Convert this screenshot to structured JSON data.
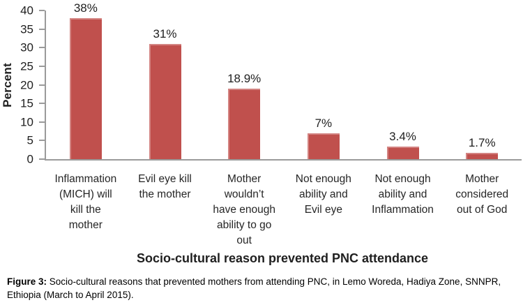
{
  "figure": {
    "caption_label": "Figure 3:",
    "caption_text": " Socio-cultural reasons that prevented mothers from attending PNC, in Lemo Woreda, Hadiya Zone, SNNPR, Ethiopia (March to April 2015)."
  },
  "chart_data": {
    "type": "bar",
    "title": "",
    "xlabel": "Socio-cultural reason prevented PNC attendance",
    "ylabel": "Percent",
    "ylim": [
      0,
      40
    ],
    "yticks": [
      0,
      5,
      10,
      15,
      20,
      25,
      30,
      35,
      40
    ],
    "grid": false,
    "legend": "none",
    "bar_color": "#C0504D",
    "axis_color": "#9A9A9A",
    "categories": [
      "Inflammation (MICH) will kill the mother",
      "Evil eye kill the mother",
      "Mother wouldn’t have enough ability to go out",
      "Not enough ability and Evil eye",
      "Not enough ability and Inflammation",
      "Mother considered out of God"
    ],
    "category_lines": [
      [
        "Inflammation",
        "(MICH) will",
        "kill the",
        "mother"
      ],
      [
        "Evil eye kill",
        "the mother"
      ],
      [
        "Mother",
        "wouldn’t",
        "have enough",
        "ability to go",
        "out"
      ],
      [
        "Not enough",
        "ability and",
        "Evil eye"
      ],
      [
        "Not enough",
        "ability and",
        "Inflammation"
      ],
      [
        "Mother",
        "considered",
        "out of God"
      ]
    ],
    "values": [
      38,
      31,
      18.9,
      7,
      3.4,
      1.7
    ],
    "value_labels": [
      "38%",
      "31%",
      "18.9%",
      "7%",
      "3.4%",
      "1.7%"
    ]
  }
}
